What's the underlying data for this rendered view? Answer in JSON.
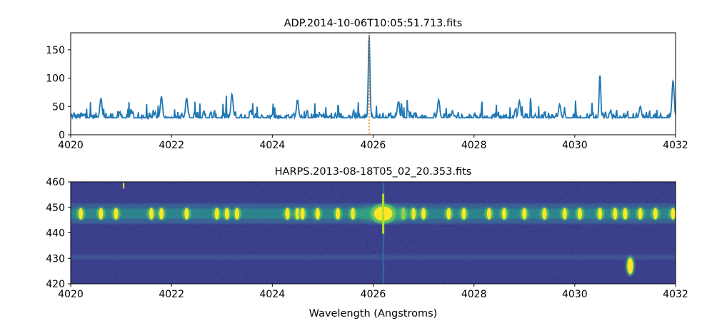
{
  "chart_data": [
    {
      "type": "line",
      "title": "ADP.2014-10-06T10:05:51.713.fits",
      "xlabel": "",
      "ylabel": "",
      "xlim": [
        4020,
        4032
      ],
      "ylim": [
        0,
        180
      ],
      "x_ticks": [
        4020,
        4022,
        4024,
        4026,
        4028,
        4030,
        4032
      ],
      "y_ticks": [
        0,
        50,
        100,
        150
      ],
      "grid": false,
      "series_color": "#1f77b4",
      "marker_line": {
        "x": 4025.92,
        "color": "#ff7f0e",
        "style": "dotted"
      },
      "baseline_level": 30,
      "noise_amplitude": 18,
      "peaks": [
        {
          "x": 4025.92,
          "y": 180
        },
        {
          "x": 4030.5,
          "y": 108
        },
        {
          "x": 4031.95,
          "y": 96
        },
        {
          "x": 4020.6,
          "y": 65
        },
        {
          "x": 4021.8,
          "y": 68
        },
        {
          "x": 4022.3,
          "y": 65
        },
        {
          "x": 4023.2,
          "y": 72
        },
        {
          "x": 4024.5,
          "y": 62
        },
        {
          "x": 4026.5,
          "y": 58
        },
        {
          "x": 4027.3,
          "y": 62
        },
        {
          "x": 4028.9,
          "y": 60
        },
        {
          "x": 4029.7,
          "y": 54
        },
        {
          "x": 4031.3,
          "y": 50
        }
      ],
      "dips": [
        4021.3,
        4022.4,
        4023.5,
        4028.3,
        4029.9,
        4030.2,
        4031.1
      ]
    },
    {
      "type": "heatmap",
      "title": "HARPS.2013-08-18T05_02_20.353.fits",
      "xlabel": "Wavelength (Angstroms)",
      "ylabel": "",
      "xlim": [
        4020,
        4032
      ],
      "ylim": [
        420,
        460
      ],
      "x_ticks": [
        4020,
        4022,
        4024,
        4026,
        4028,
        4030,
        4032
      ],
      "y_ticks": [
        420,
        430,
        440,
        450,
        460
      ],
      "colormap": "viridis",
      "background_color": "#3b3f8c",
      "trace_center": 447.5,
      "secondary_trace": 430.5,
      "bright_source": {
        "x": 4026.2,
        "y": 447.5
      },
      "spots": [
        4020.2,
        4020.6,
        4020.9,
        4021.6,
        4021.8,
        4022.3,
        4022.9,
        4023.1,
        4023.3,
        4024.3,
        4024.5,
        4024.6,
        4024.9,
        4025.3,
        4025.6,
        4026.6,
        4026.8,
        4027.0,
        4027.5,
        4027.8,
        4028.3,
        4028.6,
        4029.0,
        4029.4,
        4029.8,
        4030.1,
        4030.5,
        4030.8,
        4031.0,
        4031.3,
        4031.6,
        4031.95
      ],
      "isolated_spot": {
        "x": 4031.1,
        "y": 427
      },
      "small_spot": {
        "x": 4021.05,
        "y": 458.5
      }
    }
  ]
}
